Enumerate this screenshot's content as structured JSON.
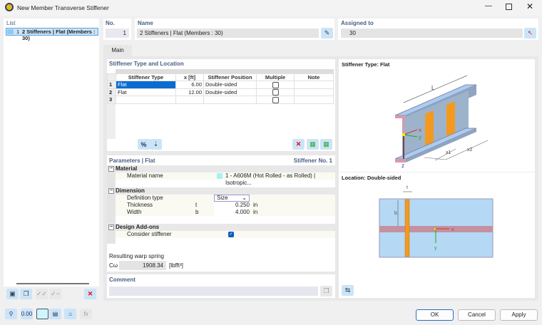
{
  "window": {
    "title": "New Member Transverse Stiffener"
  },
  "list": {
    "label": "List",
    "items": [
      {
        "no": "1",
        "label": "2 Stiffeners | Flat (Members : 30)"
      }
    ]
  },
  "no": {
    "label": "No.",
    "value": "1"
  },
  "name": {
    "label": "Name",
    "value": "2 Stiffeners | Flat (Members : 30)"
  },
  "assigned": {
    "label": "Assigned to",
    "value": "30"
  },
  "tabs": [
    {
      "label": "Main",
      "active": true
    }
  ],
  "stiffeners": {
    "title": "Stiffener Type and Location",
    "columns": [
      "Stiffener Type",
      "x [ft]",
      "Stiffener Position",
      "Multiple",
      "Note"
    ],
    "rows": [
      {
        "no": "1",
        "type": "Flat",
        "x": "6.00",
        "position": "Double-sided",
        "multiple": false,
        "note": ""
      },
      {
        "no": "2",
        "type": "Flat",
        "x": "12.00",
        "position": "Double-sided",
        "multiple": false,
        "note": ""
      },
      {
        "no": "3",
        "type": "",
        "x": "",
        "position": "",
        "multiple": false,
        "note": ""
      }
    ]
  },
  "parameters": {
    "title": "Parameters | Flat",
    "stiffener_no": "Stiffener No. 1",
    "material": {
      "label": "Material",
      "name_label": "Material name",
      "name_value": "1 - A606M (Hot Rolled - as Rolled) | Isotropic...",
      "color": "#a8f0f8"
    },
    "dimension": {
      "label": "Dimension",
      "def_label": "Definition type",
      "def_value": "Size",
      "thk_label": "Thickness",
      "thk_sym": "t",
      "thk_value": "0.250",
      "thk_unit": "in",
      "w_label": "Width",
      "w_sym": "b",
      "w_value": "4.000",
      "w_unit": "in"
    },
    "addons": {
      "label": "Design Add-ons",
      "consider_label": "Consider stiffener",
      "consider": true
    },
    "warp": {
      "label": "Resulting warp spring",
      "sym": "Cω",
      "value": "1908.34",
      "unit": "[lbfft³]"
    }
  },
  "comment": {
    "label": "Comment",
    "value": ""
  },
  "figure": {
    "type_title": "Stiffener Type: Flat",
    "location_title": "Location: Double-sided",
    "L": "L",
    "x1": "x1",
    "x2": "x2",
    "x": "x",
    "y": "y",
    "z": "z",
    "t": "t",
    "b": "b"
  },
  "buttons": {
    "ok": "OK",
    "cancel": "Cancel",
    "apply": "Apply"
  }
}
